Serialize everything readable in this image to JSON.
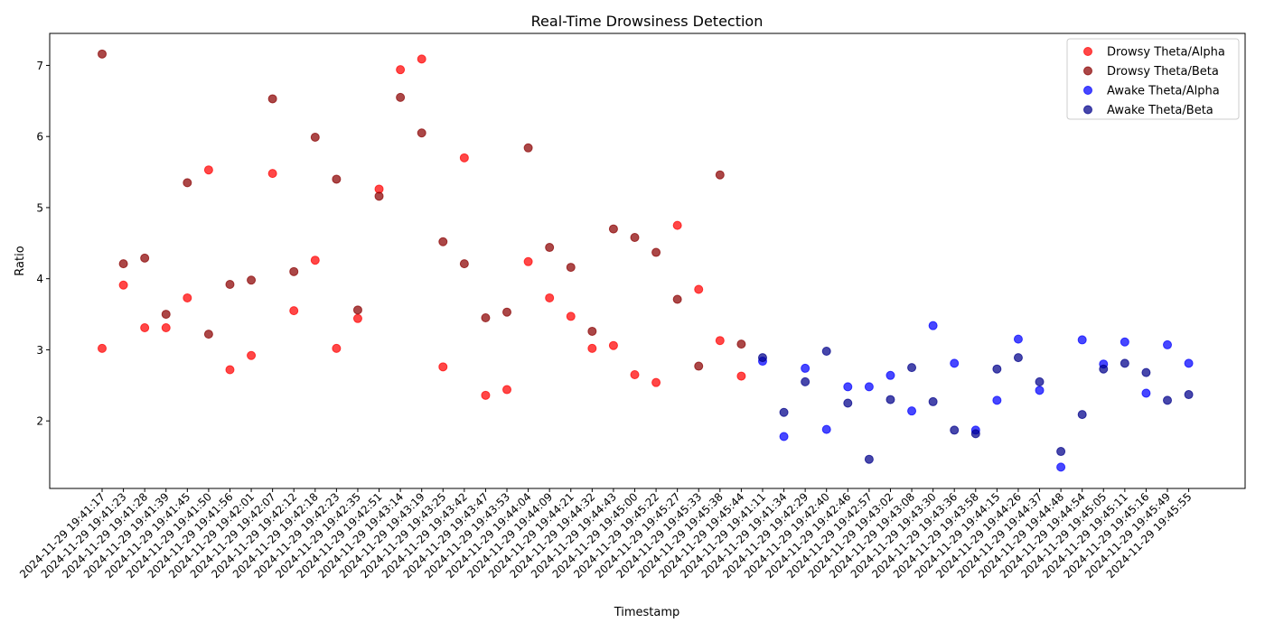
{
  "chart_data": {
    "type": "scatter",
    "title": "Real-Time Drowsiness Detection",
    "xlabel": "Timestamp",
    "ylabel": "Ratio",
    "ylim": [
      1.05,
      7.45
    ],
    "yticks": [
      2,
      3,
      4,
      5,
      6,
      7
    ],
    "grid": false,
    "legend_position": "upper right",
    "categories": [
      "2024-11-29 19:41:17",
      "2024-11-29 19:41:23",
      "2024-11-29 19:41:28",
      "2024-11-29 19:41:39",
      "2024-11-29 19:41:45",
      "2024-11-29 19:41:50",
      "2024-11-29 19:41:56",
      "2024-11-29 19:42:01",
      "2024-11-29 19:42:07",
      "2024-11-29 19:42:12",
      "2024-11-29 19:42:18",
      "2024-11-29 19:42:23",
      "2024-11-29 19:42:35",
      "2024-11-29 19:42:51",
      "2024-11-29 19:43:14",
      "2024-11-29 19:43:19",
      "2024-11-29 19:43:25",
      "2024-11-29 19:43:42",
      "2024-11-29 19:43:47",
      "2024-11-29 19:43:53",
      "2024-11-29 19:44:04",
      "2024-11-29 19:44:09",
      "2024-11-29 19:44:21",
      "2024-11-29 19:44:32",
      "2024-11-29 19:44:43",
      "2024-11-29 19:45:00",
      "2024-11-29 19:45:22",
      "2024-11-29 19:45:27",
      "2024-11-29 19:45:33",
      "2024-11-29 19:45:38",
      "2024-11-29 19:45:44",
      "2024-11-29 19:41:11",
      "2024-11-29 19:41:34",
      "2024-11-29 19:42:29",
      "2024-11-29 19:42:40",
      "2024-11-29 19:42:46",
      "2024-11-29 19:42:57",
      "2024-11-29 19:43:02",
      "2024-11-29 19:43:08",
      "2024-11-29 19:43:30",
      "2024-11-29 19:43:36",
      "2024-11-29 19:43:58",
      "2024-11-29 19:44:15",
      "2024-11-29 19:44:26",
      "2024-11-29 19:44:37",
      "2024-11-29 19:44:48",
      "2024-11-29 19:44:54",
      "2024-11-29 19:45:05",
      "2024-11-29 19:45:11",
      "2024-11-29 19:45:16",
      "2024-11-29 19:45:49",
      "2024-11-29 19:45:55"
    ],
    "series": [
      {
        "name": "Drowsy Theta/Alpha",
        "color": "#ff0000",
        "x": [
          "2024-11-29 19:41:17",
          "2024-11-29 19:41:23",
          "2024-11-29 19:41:28",
          "2024-11-29 19:41:39",
          "2024-11-29 19:41:45",
          "2024-11-29 19:41:50",
          "2024-11-29 19:41:56",
          "2024-11-29 19:42:01",
          "2024-11-29 19:42:07",
          "2024-11-29 19:42:12",
          "2024-11-29 19:42:18",
          "2024-11-29 19:42:23",
          "2024-11-29 19:42:35",
          "2024-11-29 19:42:51",
          "2024-11-29 19:43:14",
          "2024-11-29 19:43:19",
          "2024-11-29 19:43:25",
          "2024-11-29 19:43:42",
          "2024-11-29 19:43:47",
          "2024-11-29 19:43:53",
          "2024-11-29 19:44:04",
          "2024-11-29 19:44:09",
          "2024-11-29 19:44:21",
          "2024-11-29 19:44:32",
          "2024-11-29 19:44:43",
          "2024-11-29 19:45:00",
          "2024-11-29 19:45:22",
          "2024-11-29 19:45:27",
          "2024-11-29 19:45:33",
          "2024-11-29 19:45:38",
          "2024-11-29 19:45:44"
        ],
        "y": [
          3.02,
          3.91,
          3.31,
          3.31,
          3.73,
          5.53,
          2.72,
          2.92,
          5.48,
          3.55,
          4.26,
          3.02,
          3.44,
          5.26,
          6.94,
          7.09,
          2.76,
          5.7,
          2.36,
          2.44,
          4.24,
          3.73,
          3.47,
          3.02,
          3.06,
          2.65,
          2.54,
          4.75,
          3.85,
          3.13,
          2.63
        ]
      },
      {
        "name": "Drowsy Theta/Beta",
        "color": "#8b0000",
        "x": [
          "2024-11-29 19:41:17",
          "2024-11-29 19:41:23",
          "2024-11-29 19:41:28",
          "2024-11-29 19:41:39",
          "2024-11-29 19:41:45",
          "2024-11-29 19:41:50",
          "2024-11-29 19:41:56",
          "2024-11-29 19:42:01",
          "2024-11-29 19:42:07",
          "2024-11-29 19:42:12",
          "2024-11-29 19:42:18",
          "2024-11-29 19:42:23",
          "2024-11-29 19:42:35",
          "2024-11-29 19:42:51",
          "2024-11-29 19:43:14",
          "2024-11-29 19:43:19",
          "2024-11-29 19:43:25",
          "2024-11-29 19:43:42",
          "2024-11-29 19:43:47",
          "2024-11-29 19:43:53",
          "2024-11-29 19:44:04",
          "2024-11-29 19:44:09",
          "2024-11-29 19:44:21",
          "2024-11-29 19:44:32",
          "2024-11-29 19:44:43",
          "2024-11-29 19:45:00",
          "2024-11-29 19:45:22",
          "2024-11-29 19:45:27",
          "2024-11-29 19:45:33",
          "2024-11-29 19:45:38",
          "2024-11-29 19:45:44"
        ],
        "y": [
          7.16,
          4.21,
          4.29,
          3.5,
          5.35,
          3.22,
          3.92,
          3.98,
          6.53,
          4.1,
          5.99,
          5.4,
          3.56,
          5.16,
          6.55,
          6.05,
          4.52,
          4.21,
          3.45,
          3.53,
          5.84,
          4.44,
          4.16,
          3.26,
          4.7,
          4.58,
          4.37,
          3.71,
          2.77,
          5.46,
          3.08
        ]
      },
      {
        "name": "Awake Theta/Alpha",
        "color": "#0000ff",
        "x": [
          "2024-11-29 19:41:11",
          "2024-11-29 19:41:34",
          "2024-11-29 19:42:29",
          "2024-11-29 19:42:40",
          "2024-11-29 19:42:46",
          "2024-11-29 19:42:57",
          "2024-11-29 19:43:02",
          "2024-11-29 19:43:08",
          "2024-11-29 19:43:30",
          "2024-11-29 19:43:36",
          "2024-11-29 19:43:58",
          "2024-11-29 19:44:15",
          "2024-11-29 19:44:26",
          "2024-11-29 19:44:37",
          "2024-11-29 19:44:48",
          "2024-11-29 19:44:54",
          "2024-11-29 19:45:05",
          "2024-11-29 19:45:11",
          "2024-11-29 19:45:16",
          "2024-11-29 19:45:49",
          "2024-11-29 19:45:55"
        ],
        "y": [
          2.84,
          1.78,
          2.74,
          1.88,
          2.48,
          2.48,
          2.64,
          2.14,
          3.34,
          2.81,
          1.87,
          2.29,
          3.15,
          2.43,
          1.35,
          3.14,
          2.8,
          3.11,
          2.39,
          3.07,
          2.81
        ]
      },
      {
        "name": "Awake Theta/Beta",
        "color": "#00008b",
        "x": [
          "2024-11-29 19:41:11",
          "2024-11-29 19:41:34",
          "2024-11-29 19:42:29",
          "2024-11-29 19:42:40",
          "2024-11-29 19:42:46",
          "2024-11-29 19:42:57",
          "2024-11-29 19:43:02",
          "2024-11-29 19:43:08",
          "2024-11-29 19:43:30",
          "2024-11-29 19:43:36",
          "2024-11-29 19:43:58",
          "2024-11-29 19:44:15",
          "2024-11-29 19:44:26",
          "2024-11-29 19:44:37",
          "2024-11-29 19:44:48",
          "2024-11-29 19:44:54",
          "2024-11-29 19:45:05",
          "2024-11-29 19:45:11",
          "2024-11-29 19:45:16",
          "2024-11-29 19:45:49",
          "2024-11-29 19:45:55"
        ],
        "y": [
          2.89,
          2.12,
          2.55,
          2.98,
          2.25,
          1.46,
          2.3,
          2.75,
          2.27,
          1.87,
          1.82,
          2.73,
          2.89,
          2.55,
          1.57,
          2.09,
          2.73,
          2.81,
          2.68,
          2.29,
          2.37
        ]
      }
    ]
  }
}
